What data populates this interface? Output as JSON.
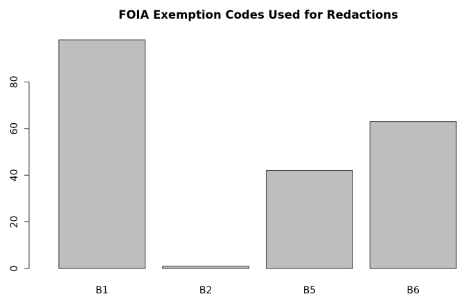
{
  "chart_data": {
    "type": "bar",
    "title": "FOIA Exemption Codes Used for Redactions",
    "xlabel": "",
    "ylabel": "",
    "categories": [
      "B1",
      "B2",
      "B5",
      "B6"
    ],
    "values": [
      98,
      1,
      42,
      63
    ],
    "ylim": [
      0,
      100
    ],
    "yticks": [
      0,
      20,
      40,
      60,
      80
    ],
    "grid": false,
    "legend": "none",
    "colors": {
      "bar_fill": "#bebebe",
      "bar_stroke": "#333333",
      "axis": "#333333"
    }
  }
}
